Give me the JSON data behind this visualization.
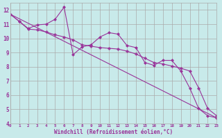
{
  "title": "",
  "xlabel": "Windchill (Refroidissement éolien,°C)",
  "ylabel": "",
  "bg_color": "#c8eaea",
  "line_color": "#993399",
  "grid_color": "#aaaaaa",
  "xlim": [
    0,
    23
  ],
  "ylim": [
    4,
    12.5
  ],
  "yticks": [
    4,
    5,
    6,
    7,
    8,
    9,
    10,
    11,
    12
  ],
  "xticks": [
    0,
    1,
    2,
    3,
    4,
    5,
    6,
    7,
    8,
    9,
    10,
    11,
    12,
    13,
    14,
    15,
    16,
    17,
    18,
    19,
    20,
    21,
    22,
    23
  ],
  "series1_x": [
    0,
    1,
    2,
    3,
    4,
    5,
    6,
    7,
    8,
    9,
    10,
    11,
    12,
    13,
    14,
    15,
    16,
    17,
    18,
    19,
    20,
    21,
    22,
    23
  ],
  "series1_y": [
    11.7,
    11.2,
    10.7,
    10.95,
    11.0,
    11.35,
    12.2,
    8.85,
    9.4,
    9.55,
    10.1,
    10.4,
    10.3,
    9.5,
    9.35,
    8.3,
    8.1,
    8.45,
    8.45,
    7.7,
    6.5,
    5.05,
    4.55,
    4.4
  ],
  "series2_x": [
    0,
    1,
    2,
    3,
    4,
    5,
    6,
    7,
    8,
    9,
    10,
    11,
    12,
    13,
    14,
    15,
    16,
    17,
    18,
    19,
    20,
    21,
    22,
    23
  ],
  "series2_y": [
    11.7,
    11.2,
    10.65,
    10.6,
    10.45,
    10.25,
    10.1,
    9.9,
    9.55,
    9.45,
    9.35,
    9.3,
    9.25,
    9.1,
    8.9,
    8.6,
    8.3,
    8.2,
    8.05,
    7.9,
    7.7,
    6.5,
    5.05,
    4.55
  ],
  "series3_x": [
    0,
    23
  ],
  "series3_y": [
    11.7,
    4.4
  ]
}
